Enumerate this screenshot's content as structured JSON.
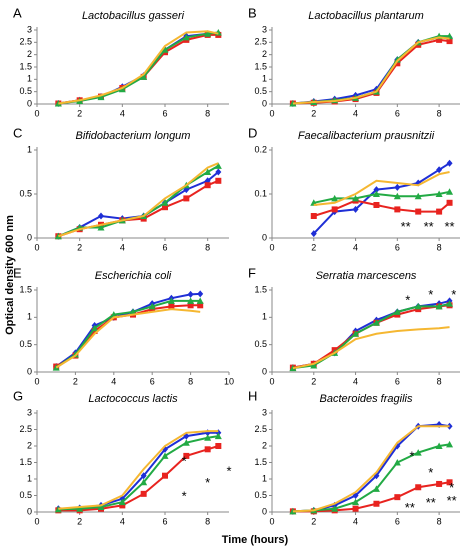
{
  "axis_labels": {
    "y": "Optical density 600 nm",
    "x": "Time (hours)"
  },
  "chart_data": [
    {
      "type": "line",
      "label": "A",
      "title": "Lactobacillus gasseri",
      "x": [
        1,
        2,
        3,
        4,
        5,
        6,
        7,
        8,
        8.5
      ],
      "xlim": [
        0,
        9
      ],
      "xticks": [
        0,
        2,
        4,
        6,
        8
      ],
      "ylim": [
        0,
        3
      ],
      "yticks": [
        0,
        0.5,
        1,
        1.5,
        2,
        2.5,
        3
      ],
      "series": [
        {
          "color": "#1f2fd6",
          "marker": "diamond",
          "values": [
            0.02,
            0.15,
            0.3,
            0.7,
            1.15,
            2.2,
            2.75,
            2.85,
            2.85
          ]
        },
        {
          "color": "#e8231f",
          "marker": "square",
          "values": [
            0.02,
            0.15,
            0.3,
            0.65,
            1.1,
            2.1,
            2.6,
            2.8,
            2.8
          ]
        },
        {
          "color": "#22aa44",
          "marker": "triangle",
          "values": [
            0.02,
            0.12,
            0.28,
            0.6,
            1.1,
            2.2,
            2.7,
            2.85,
            2.9
          ]
        },
        {
          "color": "#f5b731",
          "marker": "none",
          "values": [
            0.02,
            0.15,
            0.35,
            0.65,
            1.2,
            2.35,
            2.9,
            2.95,
            2.85
          ]
        }
      ],
      "annotations": []
    },
    {
      "type": "line",
      "label": "B",
      "title": "Lactobacillus plantarum",
      "x": [
        1,
        2,
        3,
        4,
        5,
        6,
        7,
        8,
        8.5
      ],
      "xlim": [
        0,
        9
      ],
      "xticks": [
        0,
        2,
        4,
        6,
        8
      ],
      "ylim": [
        0,
        3
      ],
      "yticks": [
        0,
        0.5,
        1,
        1.5,
        2,
        2.5,
        3
      ],
      "series": [
        {
          "color": "#1f2fd6",
          "marker": "diamond",
          "values": [
            0.02,
            0.1,
            0.2,
            0.35,
            0.6,
            1.8,
            2.5,
            2.7,
            2.7
          ]
        },
        {
          "color": "#e8231f",
          "marker": "square",
          "values": [
            0.02,
            0.05,
            0.1,
            0.2,
            0.45,
            1.65,
            2.4,
            2.6,
            2.55
          ]
        },
        {
          "color": "#22aa44",
          "marker": "triangle",
          "values": [
            0.02,
            0.08,
            0.15,
            0.25,
            0.5,
            1.8,
            2.5,
            2.75,
            2.75
          ]
        },
        {
          "color": "#f5b731",
          "marker": "none",
          "values": [
            0.02,
            0.08,
            0.12,
            0.25,
            0.5,
            1.75,
            2.5,
            2.7,
            2.65
          ]
        }
      ],
      "annotations": []
    },
    {
      "type": "line",
      "label": "C",
      "title": "Bifidobacterium longum",
      "x": [
        1,
        2,
        3,
        4,
        5,
        6,
        7,
        8,
        8.5
      ],
      "xlim": [
        0,
        9
      ],
      "xticks": [
        0,
        2,
        4,
        6,
        8
      ],
      "ylim": [
        0,
        1
      ],
      "yticks": [
        0,
        0.5,
        1
      ],
      "series": [
        {
          "color": "#1f2fd6",
          "marker": "diamond",
          "values": [
            0.02,
            0.12,
            0.25,
            0.22,
            0.25,
            0.4,
            0.55,
            0.65,
            0.75
          ]
        },
        {
          "color": "#e8231f",
          "marker": "square",
          "values": [
            0.02,
            0.1,
            0.15,
            0.2,
            0.22,
            0.35,
            0.45,
            0.6,
            0.65
          ]
        },
        {
          "color": "#22aa44",
          "marker": "triangle",
          "values": [
            0.02,
            0.12,
            0.12,
            0.2,
            0.25,
            0.4,
            0.6,
            0.75,
            0.82
          ]
        },
        {
          "color": "#f5b731",
          "marker": "none",
          "values": [
            0.02,
            0.1,
            0.15,
            0.2,
            0.25,
            0.45,
            0.6,
            0.8,
            0.85
          ]
        }
      ],
      "annotations": []
    },
    {
      "type": "line",
      "label": "D",
      "title": "Faecalibacterium prausnitzii",
      "x": [
        1,
        2,
        3,
        4,
        5,
        6,
        7,
        8,
        8.5
      ],
      "xlim": [
        0,
        9
      ],
      "xticks": [
        0,
        2,
        4,
        6,
        8
      ],
      "ylim": [
        0,
        0.2
      ],
      "yticks": [
        0,
        0.1,
        0.2
      ],
      "series": [
        {
          "color": "#1f2fd6",
          "marker": "diamond",
          "values": [
            null,
            0.01,
            0.06,
            0.065,
            0.11,
            0.115,
            0.125,
            0.155,
            0.17
          ]
        },
        {
          "color": "#e8231f",
          "marker": "square",
          "values": [
            null,
            0.05,
            0.065,
            0.085,
            0.075,
            0.065,
            0.06,
            0.06,
            0.08
          ]
        },
        {
          "color": "#22aa44",
          "marker": "triangle",
          "values": [
            null,
            0.08,
            0.09,
            0.09,
            0.1,
            0.095,
            0.095,
            0.1,
            0.105
          ]
        },
        {
          "color": "#f5b731",
          "marker": "none",
          "values": [
            null,
            0.075,
            0.08,
            0.1,
            0.13,
            0.125,
            0.12,
            0.145,
            0.15
          ]
        }
      ],
      "annotations": [
        {
          "text": "**",
          "x": 6.4,
          "y": 0.03
        },
        {
          "text": "**",
          "x": 7.5,
          "y": 0.03
        },
        {
          "text": "**",
          "x": 8.5,
          "y": 0.03
        }
      ]
    },
    {
      "type": "line",
      "label": "E",
      "title": "Escherichia coli",
      "x": [
        1,
        2,
        3,
        4,
        5,
        6,
        7,
        8,
        8.5
      ],
      "xlim": [
        0,
        10
      ],
      "xticks": [
        0,
        2,
        4,
        6,
        8,
        10
      ],
      "ylim": [
        0,
        1.5
      ],
      "yticks": [
        0,
        0.5,
        1,
        1.5
      ],
      "series": [
        {
          "color": "#1f2fd6",
          "marker": "diamond",
          "values": [
            0.1,
            0.35,
            0.85,
            1.0,
            1.1,
            1.25,
            1.35,
            1.42,
            1.43
          ]
        },
        {
          "color": "#e8231f",
          "marker": "square",
          "values": [
            0.1,
            0.3,
            0.75,
            1.0,
            1.05,
            1.15,
            1.2,
            1.22,
            1.22
          ]
        },
        {
          "color": "#22aa44",
          "marker": "triangle",
          "values": [
            0.08,
            0.32,
            0.8,
            1.05,
            1.1,
            1.2,
            1.3,
            1.3,
            1.3
          ]
        },
        {
          "color": "#f5b731",
          "marker": "none",
          "values": [
            0.08,
            0.3,
            0.7,
            1.0,
            1.05,
            1.1,
            1.15,
            1.12,
            1.1
          ]
        }
      ],
      "annotations": []
    },
    {
      "type": "line",
      "label": "F",
      "title": "Serratia marcescens",
      "x": [
        1,
        2,
        3,
        4,
        5,
        6,
        7,
        8,
        8.5
      ],
      "xlim": [
        0,
        9
      ],
      "xticks": [
        0,
        2,
        4,
        6,
        8
      ],
      "ylim": [
        0,
        1.5
      ],
      "yticks": [
        0,
        0.5,
        1,
        1.5
      ],
      "series": [
        {
          "color": "#1f2fd6",
          "marker": "diamond",
          "values": [
            0.08,
            0.15,
            0.35,
            0.75,
            0.95,
            1.1,
            1.2,
            1.25,
            1.3
          ]
        },
        {
          "color": "#e8231f",
          "marker": "square",
          "values": [
            0.08,
            0.15,
            0.4,
            0.7,
            0.9,
            1.05,
            1.15,
            1.2,
            1.22
          ]
        },
        {
          "color": "#22aa44",
          "marker": "triangle",
          "values": [
            0.07,
            0.12,
            0.35,
            0.7,
            0.9,
            1.1,
            1.2,
            1.2,
            1.25
          ]
        },
        {
          "color": "#f5b731",
          "marker": "none",
          "values": [
            0.07,
            0.15,
            0.35,
            0.6,
            0.7,
            0.75,
            0.78,
            0.8,
            0.82
          ]
        }
      ],
      "annotations": [
        {
          "text": "*",
          "x": 6.5,
          "y": 1.35
        },
        {
          "text": "*",
          "x": 7.6,
          "y": 1.45
        },
        {
          "text": "*",
          "x": 8.7,
          "y": 1.45
        }
      ]
    },
    {
      "type": "line",
      "label": "G",
      "title": "Lactococcus lactis",
      "x": [
        1,
        2,
        3,
        4,
        5,
        6,
        7,
        8,
        8.5
      ],
      "xlim": [
        0,
        9
      ],
      "xticks": [
        0,
        2,
        4,
        6,
        8
      ],
      "ylim": [
        0,
        3
      ],
      "yticks": [
        0,
        0.5,
        1,
        1.5,
        2,
        2.5,
        3
      ],
      "series": [
        {
          "color": "#1f2fd6",
          "marker": "diamond",
          "values": [
            0.1,
            0.12,
            0.2,
            0.4,
            1.1,
            1.9,
            2.3,
            2.4,
            2.4
          ]
        },
        {
          "color": "#e8231f",
          "marker": "square",
          "values": [
            0.05,
            0.05,
            0.1,
            0.2,
            0.55,
            1.1,
            1.7,
            1.9,
            2.0
          ]
        },
        {
          "color": "#22aa44",
          "marker": "triangle",
          "values": [
            0.08,
            0.1,
            0.15,
            0.3,
            0.9,
            1.7,
            2.1,
            2.25,
            2.3
          ]
        },
        {
          "color": "#f5b731",
          "marker": "none",
          "values": [
            0.1,
            0.15,
            0.2,
            0.5,
            1.3,
            2.0,
            2.4,
            2.45,
            2.45
          ]
        }
      ],
      "annotations": [
        {
          "text": "*",
          "x": 6.9,
          "y": 1.6
        },
        {
          "text": "*",
          "x": 6.9,
          "y": 0.55
        },
        {
          "text": "*",
          "x": 8.0,
          "y": 0.95
        },
        {
          "text": "*",
          "x": 9.0,
          "y": 1.3
        }
      ]
    },
    {
      "type": "line",
      "label": "H",
      "title": "Bacteroides fragilis",
      "x": [
        1,
        2,
        3,
        4,
        5,
        6,
        7,
        8,
        8.5
      ],
      "xlim": [
        0,
        9
      ],
      "xticks": [
        0,
        2,
        4,
        6,
        8
      ],
      "ylim": [
        0,
        3
      ],
      "yticks": [
        0,
        0.5,
        1,
        1.5,
        2,
        2.5,
        3
      ],
      "series": [
        {
          "color": "#1f2fd6",
          "marker": "diamond",
          "values": [
            0.02,
            0.05,
            0.2,
            0.5,
            1.1,
            2.0,
            2.6,
            2.65,
            2.6
          ]
        },
        {
          "color": "#e8231f",
          "marker": "square",
          "values": [
            0.02,
            0.02,
            0.05,
            0.1,
            0.25,
            0.45,
            0.75,
            0.85,
            0.9
          ]
        },
        {
          "color": "#22aa44",
          "marker": "triangle",
          "values": [
            0.02,
            0.05,
            0.1,
            0.3,
            0.7,
            1.5,
            1.8,
            2.0,
            2.05
          ]
        },
        {
          "color": "#f5b731",
          "marker": "none",
          "values": [
            0.02,
            0.05,
            0.25,
            0.6,
            1.2,
            2.1,
            2.6,
            2.6,
            2.6
          ]
        }
      ],
      "annotations": [
        {
          "text": "*",
          "x": 6.7,
          "y": 1.75
        },
        {
          "text": "*",
          "x": 7.6,
          "y": 1.25
        },
        {
          "text": "*",
          "x": 8.6,
          "y": 0.8
        },
        {
          "text": "**",
          "x": 6.6,
          "y": 0.2
        },
        {
          "text": "**",
          "x": 7.6,
          "y": 0.35
        },
        {
          "text": "**",
          "x": 8.6,
          "y": 0.4
        }
      ]
    }
  ]
}
